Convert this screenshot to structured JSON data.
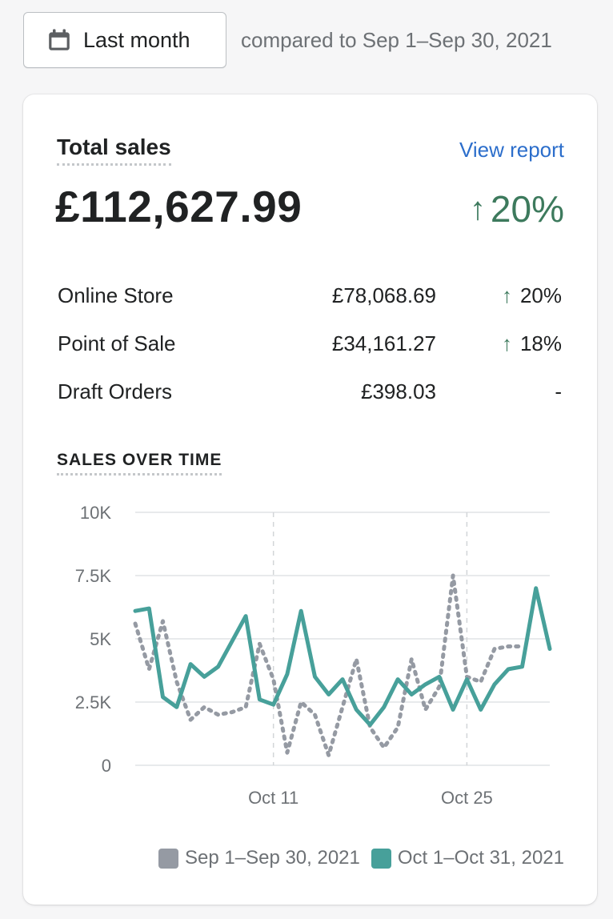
{
  "filter": {
    "date_button_label": "Last month",
    "compare_text": "compared to Sep 1–Sep 30, 2021"
  },
  "card": {
    "title": "Total sales",
    "view_report_label": "View report",
    "total_value": "£112,627.99",
    "total_change": "20%",
    "total_change_direction": "up",
    "breakdown": [
      {
        "label": "Online Store",
        "value": "£78,068.69",
        "change": "20%",
        "direction": "up"
      },
      {
        "label": "Point of Sale",
        "value": "£34,161.27",
        "change": "18%",
        "direction": "up"
      },
      {
        "label": "Draft Orders",
        "value": "£398.03",
        "change": "-",
        "direction": "none"
      }
    ],
    "section_title": "SALES OVER TIME"
  },
  "colors": {
    "accent_up": "#3d7a5d",
    "link": "#2c6ecb",
    "current_series": "#47a09a",
    "previous_series": "#959aa3"
  },
  "icons": {
    "date_button": "calendar-icon",
    "up_arrow": "arrow-up-icon"
  },
  "chart_data": {
    "type": "line",
    "ylim": [
      0,
      10000
    ],
    "y_ticks": [
      "0",
      "2.5K",
      "5K",
      "7.5K",
      "10K"
    ],
    "x_ticks": [
      {
        "day": 11,
        "label": "Oct 11"
      },
      {
        "day": 25,
        "label": "Oct 25"
      }
    ],
    "vertical_gridlines_at_days": [
      11,
      25
    ],
    "series": [
      {
        "name": "Sep 1–Sep 30, 2021",
        "style": "dotted",
        "x": [
          1,
          2,
          3,
          4,
          5,
          6,
          7,
          8,
          9,
          10,
          11,
          12,
          13,
          14,
          15,
          16,
          17,
          18,
          19,
          20,
          21,
          22,
          23,
          24,
          25,
          26,
          27,
          28,
          29,
          30
        ],
        "values": [
          5600,
          3800,
          5700,
          3300,
          1800,
          2300,
          2000,
          2100,
          2300,
          4800,
          3400,
          500,
          2500,
          2000,
          400,
          2300,
          4200,
          1500,
          700,
          1500,
          4200,
          2200,
          3100,
          7500,
          3500,
          3300,
          4600,
          4700,
          4700,
          null
        ]
      },
      {
        "name": "Oct 1–Oct 31, 2021",
        "style": "solid",
        "x": [
          1,
          2,
          3,
          4,
          5,
          6,
          7,
          8,
          9,
          10,
          11,
          12,
          13,
          14,
          15,
          16,
          17,
          18,
          19,
          20,
          21,
          22,
          23,
          24,
          25,
          26,
          27,
          28,
          29,
          30,
          31
        ],
        "values": [
          6100,
          6200,
          2700,
          2300,
          4000,
          3500,
          3900,
          4900,
          5900,
          2600,
          2400,
          3600,
          6100,
          3500,
          2800,
          3400,
          2200,
          1600,
          2300,
          3400,
          2800,
          3200,
          3500,
          2200,
          3400,
          2200,
          3200,
          3800,
          3900,
          7000,
          4600
        ]
      }
    ],
    "grid": true,
    "legend_position": "bottom-right"
  }
}
